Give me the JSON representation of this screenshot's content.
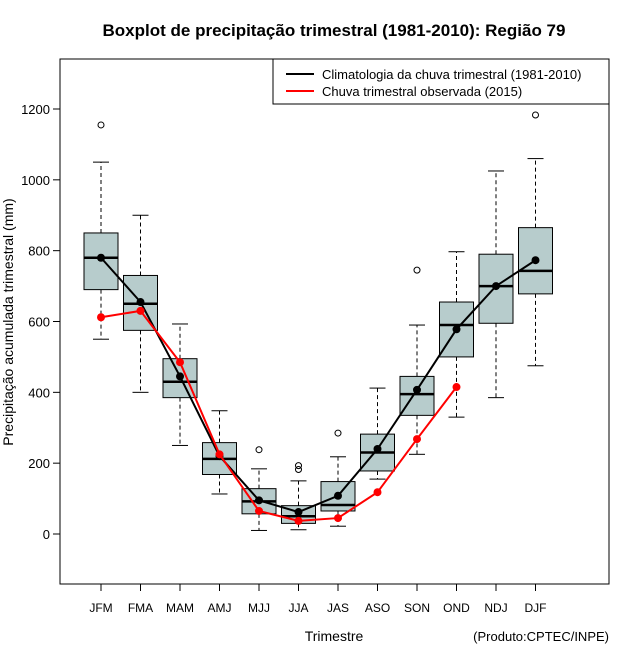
{
  "chart_data": {
    "type": "boxplot",
    "title": "Boxplot de precipitação trimestral (1981-2010): Região 79",
    "xlabel": "Trimestre",
    "ylabel": "Precipitação acumulada trimestral (mm)",
    "credit": "(Produto:CPTEC/INPE)",
    "ylim": [
      -140,
      1340
    ],
    "yticks": [
      0,
      200,
      400,
      600,
      800,
      1000,
      1200
    ],
    "grid": false,
    "legend_position": "top-right",
    "categories": [
      "JFM",
      "FMA",
      "MAM",
      "AMJ",
      "MJJ",
      "JJA",
      "JAS",
      "ASO",
      "SON",
      "OND",
      "NDJ",
      "DJF"
    ],
    "boxes": [
      {
        "low": 550,
        "q1": 690,
        "median": 780,
        "q3": 850,
        "high": 1050,
        "outliers": [
          1155
        ]
      },
      {
        "low": 400,
        "q1": 575,
        "median": 650,
        "q3": 730,
        "high": 900,
        "outliers": []
      },
      {
        "low": 250,
        "q1": 385,
        "median": 430,
        "q3": 495,
        "high": 593,
        "outliers": []
      },
      {
        "low": 113,
        "q1": 168,
        "median": 212,
        "q3": 258,
        "high": 348,
        "outliers": []
      },
      {
        "low": 10,
        "q1": 57,
        "median": 92,
        "q3": 128,
        "high": 184,
        "outliers": [
          238
        ]
      },
      {
        "low": 12,
        "q1": 30,
        "median": 50,
        "q3": 80,
        "high": 150,
        "outliers": [
          193,
          182
        ]
      },
      {
        "low": 22,
        "q1": 65,
        "median": 82,
        "q3": 148,
        "high": 218,
        "outliers": [
          285
        ]
      },
      {
        "low": 155,
        "q1": 178,
        "median": 230,
        "q3": 282,
        "high": 412,
        "outliers": []
      },
      {
        "low": 225,
        "q1": 335,
        "median": 395,
        "q3": 445,
        "high": 590,
        "outliers": [
          745
        ]
      },
      {
        "low": 330,
        "q1": 500,
        "median": 590,
        "q3": 655,
        "high": 797,
        "outliers": []
      },
      {
        "low": 385,
        "q1": 595,
        "median": 700,
        "q3": 790,
        "high": 1025,
        "outliers": []
      },
      {
        "low": 475,
        "q1": 678,
        "median": 743,
        "q3": 865,
        "high": 1060,
        "outliers": [
          1183
        ]
      }
    ],
    "series": [
      {
        "name": "Climatologia da chuva trimestral (1981-2010)",
        "color": "#000000",
        "values": [
          780,
          655,
          445,
          220,
          95,
          62,
          108,
          240,
          407,
          578,
          700,
          773
        ]
      },
      {
        "name": "Chuva trimestral observada (2015)",
        "color": "#ff0000",
        "values": [
          612,
          630,
          485,
          225,
          65,
          37,
          45,
          118,
          268,
          415,
          null,
          null
        ]
      }
    ],
    "colors": {
      "box_fill": "#b7cccc",
      "box_stroke": "#000000"
    }
  }
}
